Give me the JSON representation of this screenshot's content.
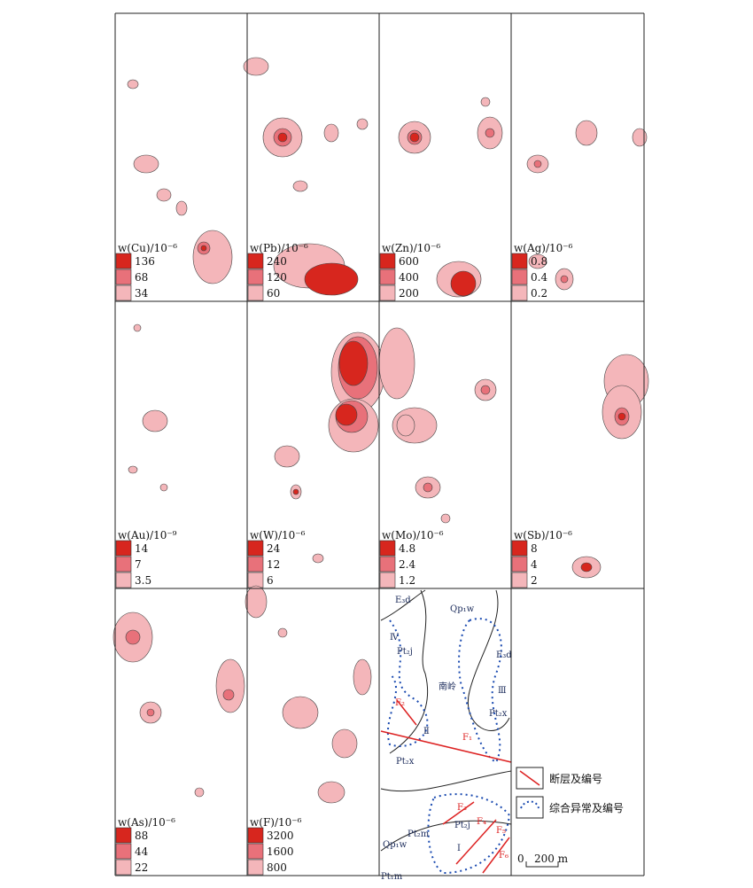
{
  "panels": [
    {
      "label": "w(Cu)/10⁻⁶",
      "legend": [
        "136",
        "68",
        "34"
      ]
    },
    {
      "label": "w(Pb)/10⁻⁶",
      "legend": [
        "240",
        "120",
        "60"
      ]
    },
    {
      "label": "w(Zn)/10⁻⁶",
      "legend": [
        "600",
        "400",
        "200"
      ]
    },
    {
      "label": "w(Ag)/10⁻⁶",
      "legend": [
        "0.8",
        "0.4",
        "0.2"
      ]
    },
    {
      "label": "w(Au)/10⁻⁹",
      "legend": [
        "14",
        "7",
        "3.5"
      ]
    },
    {
      "label": "w(W)/10⁻⁶",
      "legend": [
        "24",
        "12",
        "6"
      ]
    },
    {
      "label": "w(Mo)/10⁻⁶",
      "legend": [
        "4.8",
        "2.4",
        "1.2"
      ]
    },
    {
      "label": "w(Sb)/10⁻⁶",
      "legend": [
        "8",
        "4",
        "2"
      ]
    },
    {
      "label": "w(As)/10⁻⁶",
      "legend": [
        "88",
        "44",
        "22"
      ]
    },
    {
      "label": "w(F)/10⁻⁶",
      "legend": [
        "3200",
        "1600",
        "800"
      ]
    }
  ],
  "map": {
    "labels": [
      "E₃d",
      "Ⅳ",
      "Pt₂j",
      "Qp₁w",
      "E₃d",
      "南岭",
      "Ⅲ",
      "F₂",
      "Ⅱ",
      "F₁",
      "Pt₂x",
      "Pt₂x",
      "F₃",
      "Pt₂j",
      "F₄",
      "F₅",
      "Pt₂m",
      "Qp₁w",
      "Ⅰ",
      "F₆",
      "Pt₁m"
    ]
  },
  "legend": {
    "fault": "断层及编号",
    "anomaly": "综合异常及编号"
  },
  "scale": {
    "zero": "0",
    "length": "200 m"
  }
}
